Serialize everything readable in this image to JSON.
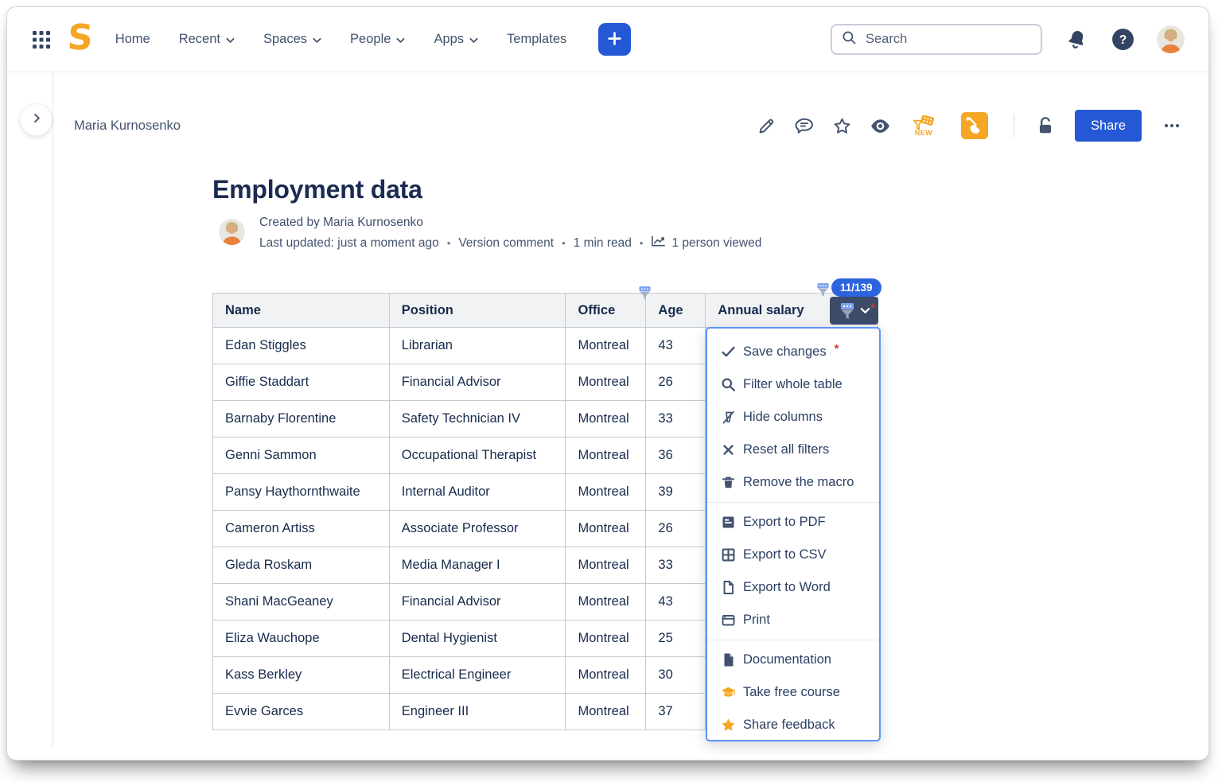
{
  "colors": {
    "accent_blue": "#2458d5",
    "badge_blue": "#2d63dd",
    "navy_text": "#172B4D",
    "nav_text": "#42526E",
    "orange": "#F5A623",
    "menu_border_blue": "#5b95f7",
    "filter_button_dark": "#3c4b68",
    "required_red": "#cf3e2e"
  },
  "topnav": {
    "items": [
      {
        "label": "Home",
        "chevron": false
      },
      {
        "label": "Recent",
        "chevron": true
      },
      {
        "label": "Spaces",
        "chevron": true
      },
      {
        "label": "People",
        "chevron": true
      },
      {
        "label": "Apps",
        "chevron": true
      },
      {
        "label": "Templates",
        "chevron": false
      }
    ],
    "search_placeholder": "Search"
  },
  "toolbar": {
    "breadcrumb": "Maria Kurnosenko",
    "share_label": "Share",
    "new_badge_label": "NEW"
  },
  "page": {
    "title": "Employment data",
    "created_by": "Created by Maria Kurnosenko",
    "meta": {
      "last_updated": "Last updated: just a moment ago",
      "separator": "•",
      "version_comment": "Version comment",
      "read_time": "1 min read",
      "viewed": "1 person viewed"
    }
  },
  "table": {
    "filter_count_badge": "11/139",
    "columns": [
      {
        "label": "Name",
        "filter_icon": false
      },
      {
        "label": "Position",
        "filter_icon": false
      },
      {
        "label": "Office",
        "filter_icon": true
      },
      {
        "label": "Age",
        "filter_icon": false
      },
      {
        "label": "Annual salary",
        "filter_icon": true
      }
    ],
    "rows": [
      [
        "Edan Stiggles",
        "Librarian",
        "Montreal",
        "43"
      ],
      [
        "Giffie Staddart",
        "Financial Advisor",
        "Montreal",
        "26"
      ],
      [
        "Barnaby Florentine",
        "Safety Technician IV",
        "Montreal",
        "33"
      ],
      [
        "Genni Sammon",
        "Occupational Therapist",
        "Montreal",
        "36"
      ],
      [
        "Pansy Haythornthwaite",
        "Internal Auditor",
        "Montreal",
        "39"
      ],
      [
        "Cameron Artiss",
        "Associate Professor",
        "Montreal",
        "26"
      ],
      [
        "Gleda Roskam",
        "Media Manager I",
        "Montreal",
        "33"
      ],
      [
        "Shani MacGeaney",
        "Financial Advisor",
        "Montreal",
        "43"
      ],
      [
        "Eliza Wauchope",
        "Dental Hygienist",
        "Montreal",
        "25"
      ],
      [
        "Kass Berkley",
        "Electrical Engineer",
        "Montreal",
        "30"
      ],
      [
        "Evvie Garces",
        "Engineer III",
        "Montreal",
        "37"
      ]
    ]
  },
  "dropdown_menu": {
    "sections": [
      {
        "items": [
          {
            "icon": "check-icon",
            "label": "Save changes",
            "required": true
          },
          {
            "icon": "search-icon",
            "label": "Filter whole table"
          },
          {
            "icon": "hide-columns-icon",
            "label": "Hide columns"
          },
          {
            "icon": "x-icon",
            "label": "Reset all filters"
          },
          {
            "icon": "trash-icon",
            "label": "Remove the macro"
          }
        ]
      },
      {
        "items": [
          {
            "icon": "export-pdf-icon",
            "label": "Export to PDF"
          },
          {
            "icon": "export-csv-icon",
            "label": "Export to CSV"
          },
          {
            "icon": "export-word-icon",
            "label": "Export to Word"
          },
          {
            "icon": "print-icon",
            "label": "Print"
          }
        ]
      },
      {
        "items": [
          {
            "icon": "documentation-icon",
            "label": "Documentation"
          },
          {
            "icon": "graduation-cap-icon",
            "label": "Take free course"
          },
          {
            "icon": "star-orange-icon",
            "label": "Share feedback"
          }
        ]
      }
    ]
  }
}
